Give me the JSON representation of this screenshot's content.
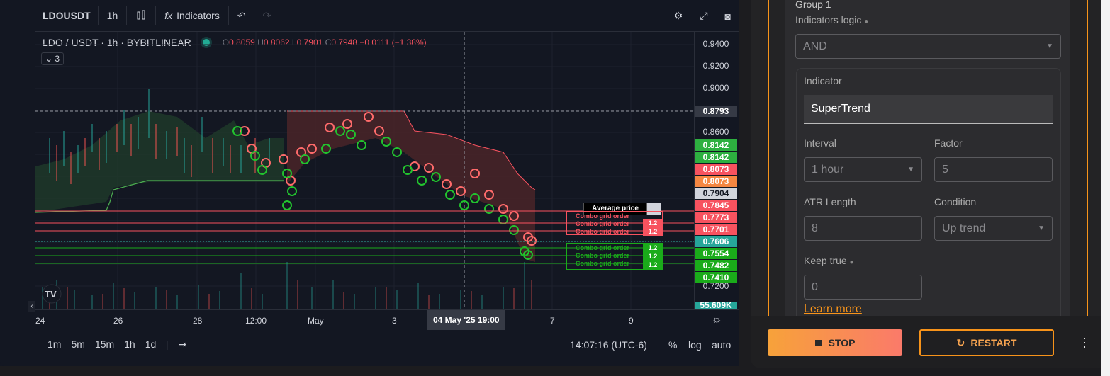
{
  "chart": {
    "symbol": "LDOUSDT",
    "interval": "1h",
    "indicators_label": "Indicators",
    "legend_title": "LDO / USDT · 1h · BYBITLINEAR",
    "ohlc": {
      "o_label": "O",
      "o": "0.8059",
      "h_label": "H",
      "h": "0.8062",
      "l_label": "L",
      "l": "0.7901",
      "c_label": "C",
      "c": "0.7948",
      "chg": "−0.0111 (−1.38%)"
    },
    "collapse_count": "3",
    "price_axis": [
      "0.9400",
      "0.9200",
      "0.9000",
      "0.8600",
      "0.7200"
    ],
    "price_tags": [
      {
        "label": "0.8793",
        "color": "#363a45"
      },
      {
        "label": "0.8142",
        "color": "#2db040"
      },
      {
        "label": "0.8142",
        "color": "#2db040"
      },
      {
        "label": "0.8073",
        "color": "#f7525f"
      },
      {
        "label": "0.8073",
        "color": "#f58742"
      },
      {
        "label": "0.7904",
        "color": "#d1d4dc"
      },
      {
        "label": "0.7845",
        "color": "#f7525f"
      },
      {
        "label": "0.7773",
        "color": "#f7525f"
      },
      {
        "label": "0.7701",
        "color": "#f7525f"
      },
      {
        "label": "0.7606",
        "color": "#26a69a"
      },
      {
        "label": "0.7554",
        "color": "#1aab1a"
      },
      {
        "label": "0.7482",
        "color": "#1aab1a"
      },
      {
        "label": "0.7410",
        "color": "#1aab1a"
      },
      {
        "label": "55.609K",
        "color": "#26a69a"
      }
    ],
    "average_price_label": "Average price",
    "combo_label": "Combo grid order",
    "combo_qty": "1.2",
    "time_axis": [
      "24",
      "26",
      "28",
      "12:00",
      "May",
      "3",
      "7",
      "9"
    ],
    "crosshair_time": "04 May '25   19:00",
    "bottom": {
      "ranges": [
        "1m",
        "5m",
        "15m",
        "1h",
        "1d"
      ],
      "clock": "14:07:16 (UTC-6)",
      "pct": "%",
      "log": "log",
      "auto": "auto"
    }
  },
  "panel": {
    "group_title": "Group 1",
    "indicators_logic_label": "Indicators logic",
    "indicators_logic_value": "AND",
    "indicator_label": "Indicator",
    "indicator_value": "SuperTrend",
    "interval_label": "Interval",
    "interval_value": "1 hour",
    "factor_label": "Factor",
    "factor_value": "5",
    "atr_label": "ATR Length",
    "atr_value": "8",
    "condition_label": "Condition",
    "condition_value": "Up trend",
    "keep_true_label": "Keep true",
    "keep_true_value": "0",
    "learn_more": "Learn more",
    "stop_label": "STOP",
    "restart_label": "RESTART"
  }
}
